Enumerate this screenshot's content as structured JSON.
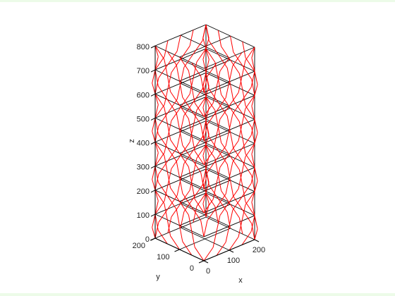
{
  "chart_data": {
    "type": "3d-wireframe",
    "title": "",
    "xlabel": "x",
    "ylabel": "y",
    "zlabel": "z",
    "xlim": [
      0,
      200
    ],
    "ylim": [
      0,
      200
    ],
    "zlim": [
      0,
      800
    ],
    "x_ticks": [
      "0",
      "100",
      "200"
    ],
    "y_ticks": [
      "0",
      "100",
      "200"
    ],
    "z_ticks": [
      "0",
      "100",
      "200",
      "300",
      "400",
      "500",
      "600",
      "700",
      "800"
    ],
    "grid": false,
    "series": [
      {
        "color": "#000000",
        "structure": "rectangular frame, 2x2 bays in plan",
        "columns_x": [
          0,
          100,
          200
        ],
        "columns_y": [
          0,
          100,
          200
        ],
        "floor_levels_z": [
          0,
          100,
          200,
          300,
          400,
          500,
          600,
          700,
          800
        ]
      },
      {
        "color": "#ff0000",
        "structure": "lattice of diagonal members on the four outer faces, zigzagging between floor levels"
      }
    ]
  },
  "colors": {
    "background": "#ffffff",
    "border": "#e3f7e3",
    "frame": "#000000",
    "members": "#ff0000"
  }
}
